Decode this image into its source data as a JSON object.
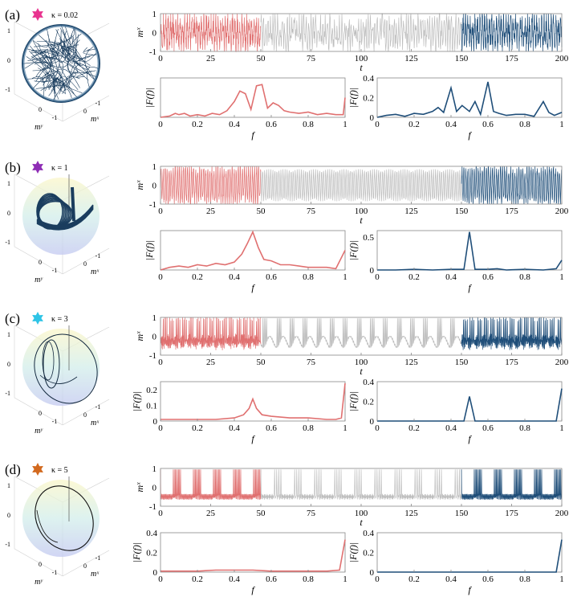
{
  "figure": {
    "panels": [
      {
        "letter": "(a)",
        "kappa_text": "κ = 0.02",
        "star_color": "#e8338f",
        "traj": "chaotic"
      },
      {
        "letter": "(b)",
        "kappa_text": "κ = 1",
        "star_color": "#8e2db5",
        "traj": "toroidal"
      },
      {
        "letter": "(c)",
        "kappa_text": "κ = 3",
        "star_color": "#2ec4e6",
        "traj": "loops"
      },
      {
        "letter": "(d)",
        "kappa_text": "κ = 5",
        "star_color": "#d2691e",
        "traj": "single"
      }
    ],
    "sphere_axis_labels": {
      "x": "mˣ",
      "y": "mʸ",
      "z": "mᶻ"
    },
    "sphere_ticks": [
      "1",
      "0",
      "-1",
      "0",
      "-1",
      "0",
      "-1"
    ],
    "colors": {
      "early": "#e07070",
      "middle": "#bdbdbd",
      "late": "#1f4e79",
      "axis": "#888888"
    }
  },
  "chart_data": [
    {
      "type": "line",
      "panel": "(a)",
      "role": "time-series",
      "xlabel": "t",
      "ylabel": "mˣ",
      "xlim": [
        0,
        200
      ],
      "ylim": [
        -1,
        1
      ],
      "xticks": [
        "0",
        "25",
        "50",
        "75",
        "100",
        "125",
        "150",
        "175",
        "200"
      ],
      "yticks": [
        "1",
        "0",
        "-1"
      ],
      "segments": [
        {
          "name": "early",
          "range": [
            0,
            50
          ]
        },
        {
          "name": "middle",
          "range": [
            50,
            150
          ]
        },
        {
          "name": "late",
          "range": [
            150,
            200
          ]
        }
      ]
    },
    {
      "type": "line",
      "panel": "(a)",
      "role": "spectrum-early",
      "xlabel": "f",
      "ylabel": "|F(f)|",
      "xlim": [
        0,
        1
      ],
      "ylim": [
        0,
        0.3
      ],
      "xticks": [
        "0",
        "0.2",
        "0.4",
        "0.6",
        "0.8",
        "1"
      ],
      "yticks": [],
      "x": [
        0,
        0.05,
        0.08,
        0.1,
        0.13,
        0.16,
        0.2,
        0.24,
        0.28,
        0.32,
        0.36,
        0.4,
        0.43,
        0.46,
        0.49,
        0.52,
        0.55,
        0.58,
        0.61,
        0.64,
        0.67,
        0.7,
        0.75,
        0.8,
        0.85,
        0.9,
        0.95,
        0.99,
        1.0
      ],
      "values": [
        0,
        0.01,
        0.03,
        0.02,
        0.03,
        0.01,
        0.02,
        0.01,
        0.03,
        0.02,
        0.05,
        0.12,
        0.2,
        0.18,
        0.06,
        0.24,
        0.25,
        0.07,
        0.11,
        0.09,
        0.05,
        0.04,
        0.03,
        0.04,
        0.02,
        0.03,
        0.02,
        0.02,
        0.15
      ]
    },
    {
      "type": "line",
      "panel": "(a)",
      "role": "spectrum-late",
      "xlabel": "f",
      "ylabel": "|F(f)|",
      "xlim": [
        0,
        1
      ],
      "ylim": [
        0,
        0.4
      ],
      "xticks": [
        "0",
        "0.2",
        "0.4",
        "0.6",
        "0.8",
        "1"
      ],
      "yticks": [
        "0",
        "0.2",
        "0.4"
      ],
      "x": [
        0,
        0.05,
        0.1,
        0.15,
        0.2,
        0.25,
        0.3,
        0.33,
        0.36,
        0.4,
        0.43,
        0.46,
        0.5,
        0.53,
        0.56,
        0.6,
        0.63,
        0.66,
        0.7,
        0.75,
        0.8,
        0.85,
        0.9,
        0.93,
        0.96,
        1.0
      ],
      "values": [
        0,
        0.02,
        0.03,
        0.01,
        0.04,
        0.03,
        0.06,
        0.1,
        0.05,
        0.3,
        0.06,
        0.12,
        0.06,
        0.16,
        0.03,
        0.36,
        0.06,
        0.04,
        0.02,
        0.03,
        0.03,
        0.01,
        0.16,
        0.05,
        0.02,
        0.05
      ]
    },
    {
      "type": "line",
      "panel": "(b)",
      "role": "time-series",
      "xlabel": "t",
      "ylabel": "mˣ",
      "xlim": [
        0,
        200
      ],
      "ylim": [
        -1,
        1
      ],
      "xticks": [
        "0",
        "25",
        "50",
        "75",
        "100",
        "125",
        "150",
        "175",
        "200"
      ],
      "yticks": [
        "1",
        "0",
        "-1"
      ],
      "segments": [
        {
          "name": "early",
          "range": [
            0,
            50
          ]
        },
        {
          "name": "middle",
          "range": [
            50,
            150
          ]
        },
        {
          "name": "late",
          "range": [
            150,
            200
          ]
        }
      ]
    },
    {
      "type": "line",
      "panel": "(b)",
      "role": "spectrum-early",
      "xlabel": "f",
      "ylabel": "|F(f)|",
      "xlim": [
        0,
        1
      ],
      "ylim": [
        0,
        0.3
      ],
      "xticks": [
        "0",
        "0.2",
        "0.4",
        "0.6",
        "0.8",
        "1"
      ],
      "yticks": [],
      "x": [
        0,
        0.05,
        0.1,
        0.15,
        0.2,
        0.25,
        0.3,
        0.35,
        0.4,
        0.44,
        0.47,
        0.5,
        0.53,
        0.56,
        0.6,
        0.65,
        0.7,
        0.75,
        0.8,
        0.85,
        0.9,
        0.95,
        1.0
      ],
      "values": [
        0,
        0.02,
        0.03,
        0.02,
        0.04,
        0.03,
        0.05,
        0.04,
        0.06,
        0.12,
        0.2,
        0.29,
        0.17,
        0.08,
        0.07,
        0.04,
        0.04,
        0.03,
        0.02,
        0.02,
        0.02,
        0.01,
        0.15
      ]
    },
    {
      "type": "line",
      "panel": "(b)",
      "role": "spectrum-late",
      "xlabel": "f",
      "ylabel": "|F(f)|",
      "xlim": [
        0,
        1
      ],
      "ylim": [
        0,
        0.6
      ],
      "xticks": [
        "0",
        "0.2",
        "0.4",
        "0.6",
        "0.8",
        "1"
      ],
      "yticks": [
        "0",
        "0.5"
      ],
      "x": [
        0,
        0.1,
        0.2,
        0.3,
        0.4,
        0.47,
        0.5,
        0.53,
        0.6,
        0.65,
        0.7,
        0.8,
        0.9,
        0.97,
        1.0
      ],
      "values": [
        0,
        0,
        0.01,
        0,
        0.01,
        0.01,
        0.58,
        0.01,
        0.01,
        0.02,
        0,
        0.01,
        0,
        0.02,
        0.15
      ]
    },
    {
      "type": "line",
      "panel": "(c)",
      "role": "time-series",
      "xlabel": "t",
      "ylabel": "mˣ",
      "xlim": [
        0,
        200
      ],
      "ylim": [
        -1,
        1
      ],
      "xticks": [
        "0",
        "25",
        "50",
        "75",
        "100",
        "125",
        "150",
        "175",
        "200"
      ],
      "yticks": [
        "1",
        "0",
        "-1"
      ],
      "segments": [
        {
          "name": "early",
          "range": [
            0,
            50
          ]
        },
        {
          "name": "middle",
          "range": [
            50,
            150
          ]
        },
        {
          "name": "late",
          "range": [
            150,
            200
          ]
        }
      ]
    },
    {
      "type": "line",
      "panel": "(c)",
      "role": "spectrum-early",
      "xlabel": "f",
      "ylabel": "|F(f)|",
      "xlim": [
        0,
        1
      ],
      "ylim": [
        0,
        0.25
      ],
      "xticks": [
        "0",
        "0.2",
        "0.4",
        "0.6",
        "0.8",
        "1"
      ],
      "yticks": [
        "0",
        "0.1",
        "0.2"
      ],
      "x": [
        0,
        0.05,
        0.1,
        0.2,
        0.3,
        0.4,
        0.45,
        0.48,
        0.5,
        0.52,
        0.55,
        0.6,
        0.7,
        0.8,
        0.9,
        0.95,
        0.98,
        1.0
      ],
      "values": [
        0.01,
        0.01,
        0.01,
        0.01,
        0.01,
        0.02,
        0.04,
        0.08,
        0.14,
        0.08,
        0.04,
        0.03,
        0.02,
        0.02,
        0.01,
        0.01,
        0.02,
        0.24
      ]
    },
    {
      "type": "line",
      "panel": "(c)",
      "role": "spectrum-late",
      "xlabel": "f",
      "ylabel": "|F(f)|",
      "xlim": [
        0,
        1
      ],
      "ylim": [
        0,
        0.4
      ],
      "xticks": [
        "0",
        "0.2",
        "0.4",
        "0.6",
        "0.8",
        "1"
      ],
      "yticks": [
        "0",
        "0.2",
        "0.4"
      ],
      "x": [
        0,
        0.2,
        0.4,
        0.47,
        0.5,
        0.53,
        0.6,
        0.8,
        0.97,
        1.0
      ],
      "values": [
        0,
        0,
        0,
        0,
        0.25,
        0,
        0,
        0,
        0,
        0.33
      ]
    },
    {
      "type": "line",
      "panel": "(d)",
      "role": "time-series",
      "xlabel": "t",
      "ylabel": "mˣ",
      "xlim": [
        0,
        200
      ],
      "ylim": [
        -1,
        1
      ],
      "xticks": [
        "0",
        "25",
        "50",
        "75",
        "100",
        "125",
        "150",
        "175",
        "200"
      ],
      "yticks": [
        "1",
        "0",
        "-1"
      ],
      "segments": [
        {
          "name": "early",
          "range": [
            0,
            50
          ]
        },
        {
          "name": "middle",
          "range": [
            50,
            150
          ]
        },
        {
          "name": "late",
          "range": [
            150,
            200
          ]
        }
      ]
    },
    {
      "type": "line",
      "panel": "(d)",
      "role": "spectrum-early",
      "xlabel": "f",
      "ylabel": "|F(f)|",
      "xlim": [
        0,
        1
      ],
      "ylim": [
        0,
        0.4
      ],
      "xticks": [
        "0",
        "0.2",
        "0.4",
        "0.6",
        "0.8",
        "1"
      ],
      "yticks": [
        "0",
        "0.2",
        "0.4"
      ],
      "x": [
        0,
        0.1,
        0.2,
        0.3,
        0.4,
        0.5,
        0.6,
        0.7,
        0.8,
        0.9,
        0.97,
        1.0
      ],
      "values": [
        0.01,
        0.01,
        0.01,
        0.02,
        0.02,
        0.02,
        0.01,
        0.01,
        0.01,
        0.01,
        0.02,
        0.33
      ]
    },
    {
      "type": "line",
      "panel": "(d)",
      "role": "spectrum-late",
      "xlabel": "f",
      "ylabel": "|F(f)|",
      "xlim": [
        0,
        1
      ],
      "ylim": [
        0,
        0.4
      ],
      "xticks": [
        "0",
        "0.2",
        "0.4",
        "0.6",
        "0.8",
        "1"
      ],
      "yticks": [
        "0",
        "0.2",
        "0.4"
      ],
      "x": [
        0,
        0.2,
        0.4,
        0.6,
        0.8,
        0.97,
        1.0
      ],
      "values": [
        0,
        0,
        0,
        0,
        0,
        0,
        0.33
      ]
    }
  ]
}
